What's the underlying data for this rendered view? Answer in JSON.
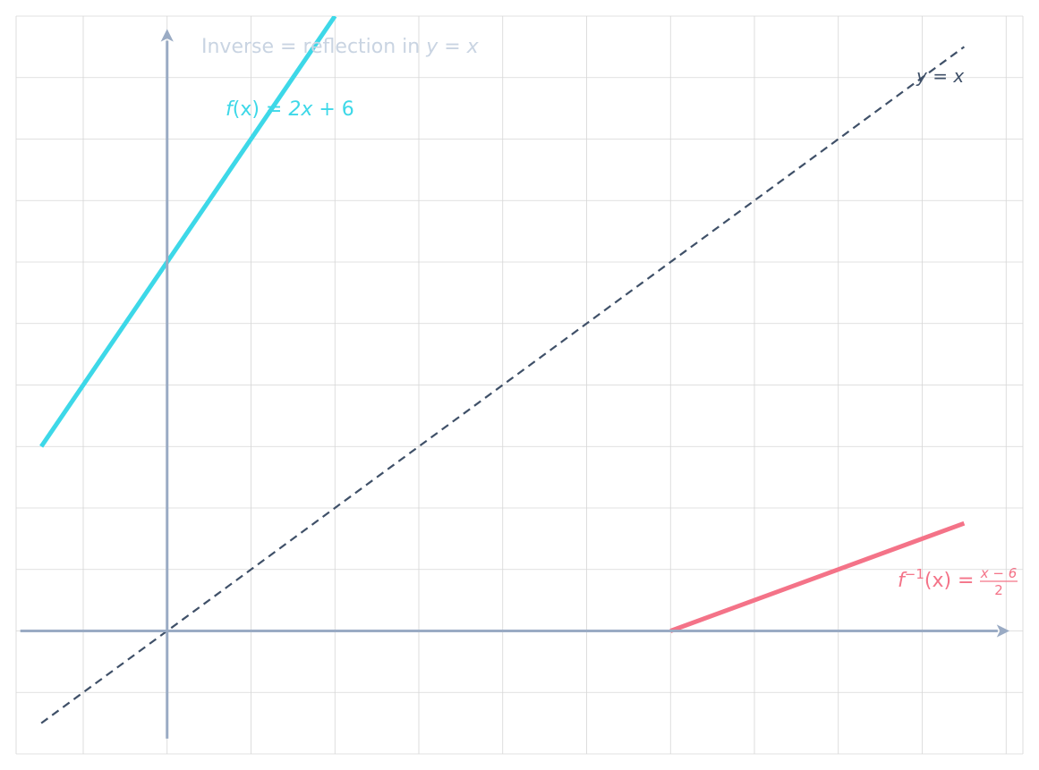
{
  "chart_data": {
    "type": "line",
    "title": "Inverse = reflection in y = x",
    "title_parts": {
      "text": "Inverse = reflection in ",
      "var": "y = x"
    },
    "xlim": [
      -1.8,
      10.2
    ],
    "ylim": [
      -2,
      10
    ],
    "grid": true,
    "series": [
      {
        "name": "f(x) = 2x + 6",
        "label_parts": {
          "f": "f",
          "arg": "(x) = ",
          "var": "2x",
          "rest": " + 6"
        },
        "color": "#3dd8e8",
        "style": "solid",
        "x": [
          -1.5,
          2
        ],
        "y": [
          3,
          10
        ]
      },
      {
        "name": "y = x",
        "label_parts": {
          "lhs": "y",
          "eq": " = ",
          "rhs": "x"
        },
        "color": "#3f5068",
        "style": "dashed",
        "x": [
          -1.5,
          9.5
        ],
        "y": [
          -1.5,
          9.5
        ]
      },
      {
        "name": "f⁻¹(x) = (x − 6)/2",
        "label_parts": {
          "f": "f",
          "sup": "−1",
          "arg": "(x) = ",
          "num": "x − 6",
          "den": "2"
        },
        "color": "#f47388",
        "style": "solid",
        "x": [
          6,
          9.5
        ],
        "y": [
          0,
          1.75
        ]
      }
    ]
  },
  "colors": {
    "axis": "#9aabc4",
    "grid": "#d6d6d6",
    "title": "#c9d4e2"
  }
}
